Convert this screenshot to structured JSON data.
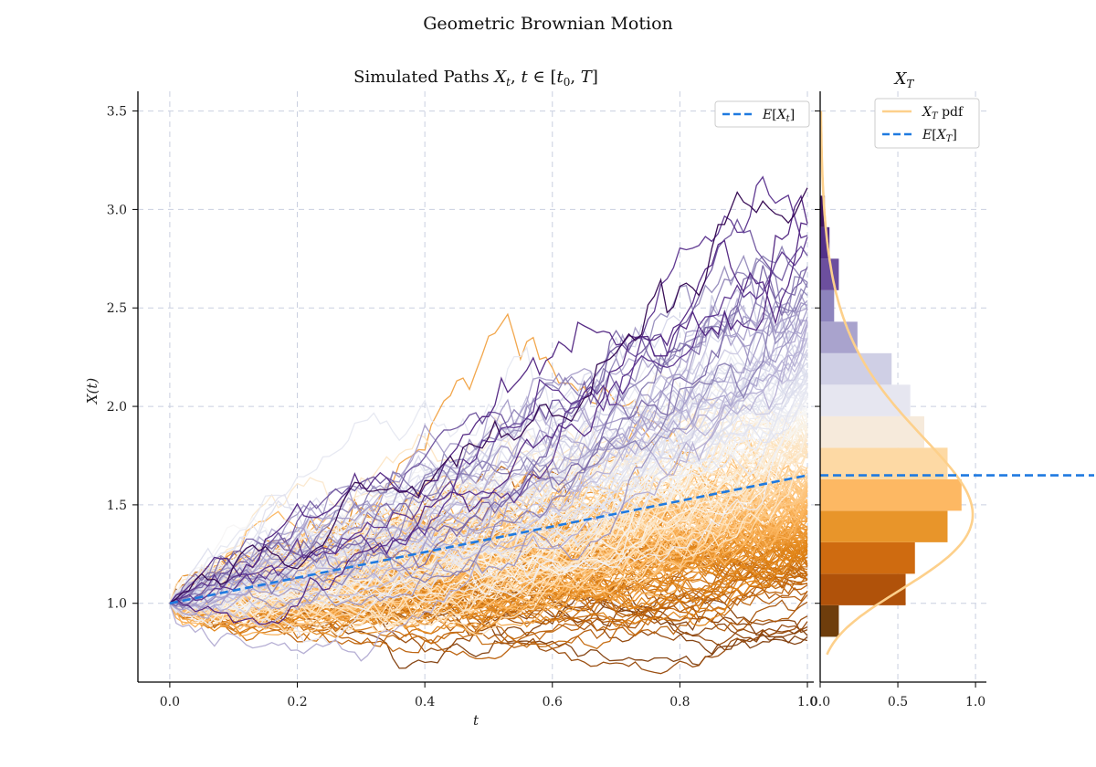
{
  "figure": {
    "suptitle": "Geometric Brownian Motion"
  },
  "chart_data": [
    {
      "type": "line",
      "title": "Simulated Paths X_t, t ∈ [t_0, T]",
      "xlabel": "t",
      "ylabel": "X(t)",
      "xlim": [
        -0.05,
        1.01
      ],
      "ylim": [
        0.6,
        3.6
      ],
      "xticks": [
        "0.0",
        "0.2",
        "0.4",
        "0.6",
        "0.8",
        "1.0"
      ],
      "yticks": [
        "1.0",
        "1.5",
        "2.0",
        "2.5",
        "3.0",
        "3.5"
      ],
      "grid": true,
      "legend": {
        "position": "top-right",
        "entries": [
          {
            "label": "E[X_t]",
            "color": "#1f7ae0",
            "style": "dashed"
          }
        ]
      },
      "series": [
        {
          "name": "E[X_t]",
          "x": [
            0.0,
            1.0
          ],
          "values": [
            1.0,
            1.65
          ],
          "color": "#1f7ae0",
          "style": "dashed"
        }
      ],
      "paths": {
        "count": 250,
        "x_start": 0.0,
        "x_end": 1.0,
        "start_value": 1.0,
        "approx_final_range": [
          0.83,
          3.12
        ],
        "highlighted_paths": [
          {
            "final": 3.11,
            "peak": 3.13
          },
          {
            "final": 2.86
          },
          {
            "final": 2.7
          },
          {
            "final": 2.63
          }
        ],
        "colormap": "PuOr",
        "colormap_stops": [
          "#7f3b08",
          "#b35806",
          "#e08214",
          "#fdb863",
          "#fee0b6",
          "#f7f7f7",
          "#d8daeb",
          "#b2abd2",
          "#8073ac",
          "#542788",
          "#2d004b"
        ]
      }
    },
    {
      "type": "bar",
      "orientation": "horizontal",
      "title": "X_T",
      "xlim": [
        0.0,
        1.07
      ],
      "xticks": [
        "0.0",
        "0.5",
        "1.0"
      ],
      "shared_y_with_left": true,
      "grid": true,
      "legend": {
        "position": "top-right",
        "entries": [
          {
            "label": "X_T pdf",
            "color": "#fdd08b",
            "style": "solid"
          },
          {
            "label": "E[X_T]",
            "color": "#1f7ae0",
            "style": "dashed"
          }
        ]
      },
      "bins": [
        {
          "y0": 0.83,
          "y1": 0.99,
          "density": 0.12,
          "color": "#6e3d0c"
        },
        {
          "y0": 0.99,
          "y1": 1.15,
          "density": 0.55,
          "color": "#b0520a"
        },
        {
          "y0": 1.15,
          "y1": 1.31,
          "density": 0.61,
          "color": "#cf6b10"
        },
        {
          "y0": 1.31,
          "y1": 1.47,
          "density": 0.82,
          "color": "#e8952a"
        },
        {
          "y0": 1.47,
          "y1": 1.63,
          "density": 0.91,
          "color": "#fdb863"
        },
        {
          "y0": 1.63,
          "y1": 1.79,
          "density": 0.82,
          "color": "#fdd9a4"
        },
        {
          "y0": 1.79,
          "y1": 1.95,
          "density": 0.67,
          "color": "#f6eadb"
        },
        {
          "y0": 1.95,
          "y1": 2.11,
          "density": 0.58,
          "color": "#e6e6f0"
        },
        {
          "y0": 2.11,
          "y1": 2.27,
          "density": 0.46,
          "color": "#cfcfe5"
        },
        {
          "y0": 2.27,
          "y1": 2.43,
          "density": 0.24,
          "color": "#a9a3cd"
        },
        {
          "y0": 2.43,
          "y1": 2.59,
          "density": 0.09,
          "color": "#8d84bd"
        },
        {
          "y0": 2.59,
          "y1": 2.75,
          "density": 0.12,
          "color": "#6c4f9e"
        },
        {
          "y0": 2.75,
          "y1": 2.91,
          "density": 0.06,
          "color": "#54318a"
        },
        {
          "y0": 2.91,
          "y1": 3.07,
          "density": 0.03,
          "color": "#3f1762"
        }
      ],
      "pdf": {
        "type": "lognormal",
        "mu": 0.445,
        "sigma": 0.27,
        "y_range": [
          0.74,
          3.5
        ],
        "color": "#fdd08b"
      },
      "mean": {
        "value": 1.65,
        "color": "#1f7ae0"
      }
    }
  ]
}
